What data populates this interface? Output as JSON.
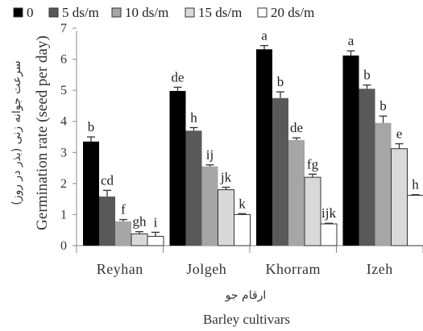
{
  "chart_data": {
    "type": "bar",
    "categories": [
      "Reyhan",
      "Jolgeh",
      "Khorram",
      "Izeh"
    ],
    "series": [
      {
        "name": "0",
        "color": "#000000",
        "values": [
          3.35,
          4.98,
          6.32,
          6.12
        ],
        "errors": [
          0.15,
          0.12,
          0.12,
          0.15
        ],
        "labels": [
          "b",
          "de",
          "a",
          "a"
        ]
      },
      {
        "name": "5 ds/m",
        "color": "#595959",
        "values": [
          1.58,
          3.7,
          4.75,
          5.05
        ],
        "errors": [
          0.2,
          0.1,
          0.2,
          0.12
        ],
        "labels": [
          "cd",
          "h",
          "b",
          "b"
        ]
      },
      {
        "name": "10 ds/m",
        "color": "#a6a6a6",
        "values": [
          0.78,
          2.55,
          3.4,
          3.95
        ],
        "errors": [
          0.06,
          0.05,
          0.07,
          0.22
        ],
        "labels": [
          "f",
          "ij",
          "de",
          "b"
        ]
      },
      {
        "name": "15 ds/m",
        "color": "#d9d9d9",
        "values": [
          0.38,
          1.8,
          2.2,
          3.12
        ],
        "errors": [
          0.07,
          0.08,
          0.1,
          0.16
        ],
        "labels": [
          "gh",
          "jk",
          "fg",
          "e"
        ]
      },
      {
        "name": "20 ds/m",
        "color": "#ffffff",
        "values": [
          0.3,
          1.0,
          0.7,
          1.62
        ],
        "errors": [
          0.13,
          0.03,
          0.02,
          0.02
        ],
        "labels": [
          "i",
          "k",
          "ijk",
          "h"
        ]
      }
    ],
    "ylim": [
      0,
      7
    ],
    "yticks": [
      "0",
      "1",
      "2",
      "3",
      "4",
      "5",
      "6",
      "7"
    ],
    "ylabel": "Germination rate (seed per day)",
    "ylabel_fa": "سرعت جوانه زنی (بذر در روز)",
    "xlabel": "Barley cultivars",
    "xlabel_fa": "ارقام جو",
    "grid": false,
    "legend_position": "top"
  }
}
